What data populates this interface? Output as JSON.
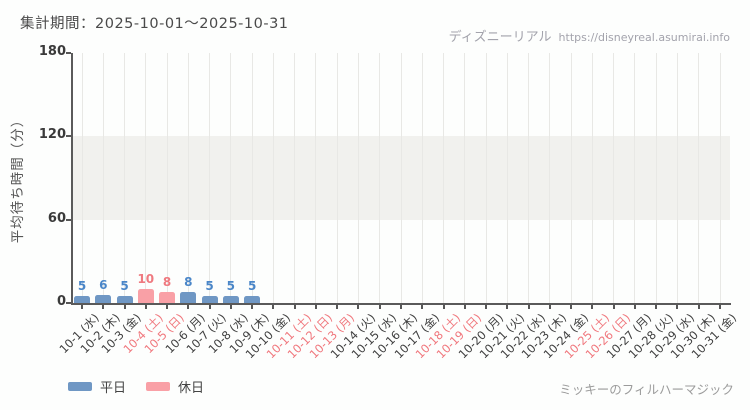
{
  "header": {
    "period_label": "集計期間：2025-10-01～2025-10-31",
    "site_name": "ディズニーリアル",
    "site_url": "https://disneyreal.asumirai.info"
  },
  "chart_data": {
    "type": "bar",
    "title": "平均待ち時間 2025-10-01～2025-10-31 ミッキーのフィルハーマジック",
    "ylabel": "平均待ち時間（分）",
    "xlabel": "",
    "ylim": [
      0,
      180
    ],
    "yticks": [
      0,
      60,
      120,
      180
    ],
    "band": {
      "from": 60,
      "to": 120
    },
    "grid": "vertical",
    "legend_position": "bottom-left",
    "categories": [
      "10-1 (水)",
      "10-2 (木)",
      "10-3 (金)",
      "10-4 (土)",
      "10-5 (日)",
      "10-6 (月)",
      "10-7 (火)",
      "10-8 (水)",
      "10-9 (木)",
      "10-10 (金)",
      "10-11 (土)",
      "10-12 (日)",
      "10-13 (月)",
      "10-14 (火)",
      "10-15 (水)",
      "10-16 (木)",
      "10-17 (金)",
      "10-18 (土)",
      "10-19 (日)",
      "10-20 (月)",
      "10-21 (火)",
      "10-22 (水)",
      "10-23 (木)",
      "10-24 (金)",
      "10-25 (土)",
      "10-26 (日)",
      "10-27 (月)",
      "10-28 (火)",
      "10-29 (水)",
      "10-30 (木)",
      "10-31 (金)"
    ],
    "holidays": [
      false,
      false,
      false,
      true,
      true,
      false,
      false,
      false,
      false,
      false,
      true,
      true,
      true,
      false,
      false,
      false,
      false,
      true,
      true,
      false,
      false,
      false,
      false,
      false,
      true,
      true,
      false,
      false,
      false,
      false,
      false
    ],
    "values": [
      5,
      6,
      5,
      10,
      8,
      8,
      5,
      5,
      5,
      null,
      null,
      null,
      null,
      null,
      null,
      null,
      null,
      null,
      null,
      null,
      null,
      null,
      null,
      null,
      null,
      null,
      null,
      null,
      null,
      null,
      null
    ],
    "colors": {
      "weekday_bar": "#6f97c4",
      "holiday_bar": "#f9a0a6",
      "weekday_value_text": "#4a86c8",
      "holiday_value_text": "#ef7a80",
      "weekday_axis_text": "#3f3f3f",
      "holiday_axis_text": "#f0777d"
    }
  },
  "legend": {
    "items": [
      {
        "label": "平日",
        "color": "#6f97c4"
      },
      {
        "label": "休日",
        "color": "#f9a0a6"
      }
    ]
  },
  "footer": {
    "attraction_name": "ミッキーのフィルハーマジック"
  }
}
